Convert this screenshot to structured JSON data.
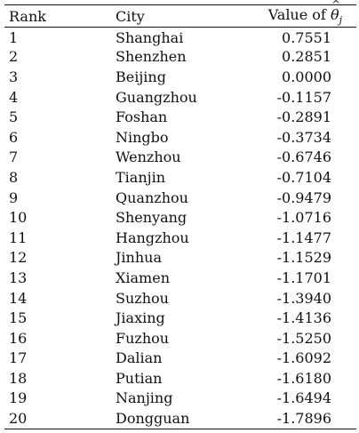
{
  "table": {
    "headers": {
      "rank": "Rank",
      "city": "City",
      "value_prefix": "Value of ",
      "value_symbol": "θ",
      "value_subscript": "j"
    },
    "rows": [
      {
        "rank": "1",
        "city": "Shanghai",
        "value": "0.7551"
      },
      {
        "rank": "2",
        "city": "Shenzhen",
        "value": "0.2851"
      },
      {
        "rank": "3",
        "city": "Beijing",
        "value": "0.0000"
      },
      {
        "rank": "4",
        "city": "Guangzhou",
        "value": "-0.1157"
      },
      {
        "rank": "5",
        "city": "Foshan",
        "value": "-0.2891"
      },
      {
        "rank": "6",
        "city": "Ningbo",
        "value": "-0.3734"
      },
      {
        "rank": "7",
        "city": "Wenzhou",
        "value": "-0.6746"
      },
      {
        "rank": "8",
        "city": "Tianjin",
        "value": "-0.7104"
      },
      {
        "rank": "9",
        "city": "Quanzhou",
        "value": "-0.9479"
      },
      {
        "rank": "10",
        "city": "Shenyang",
        "value": "-1.0716"
      },
      {
        "rank": "11",
        "city": "Hangzhou",
        "value": "-1.1477"
      },
      {
        "rank": "12",
        "city": "Jinhua",
        "value": "-1.1529"
      },
      {
        "rank": "13",
        "city": "Xiamen",
        "value": "-1.1701"
      },
      {
        "rank": "14",
        "city": "Suzhou",
        "value": "-1.3940"
      },
      {
        "rank": "15",
        "city": "Jiaxing",
        "value": "-1.4136"
      },
      {
        "rank": "16",
        "city": "Fuzhou",
        "value": "-1.5250"
      },
      {
        "rank": "17",
        "city": "Dalian",
        "value": "-1.6092"
      },
      {
        "rank": "18",
        "city": "Putian",
        "value": "-1.6180"
      },
      {
        "rank": "19",
        "city": "Nanjing",
        "value": "-1.6494"
      },
      {
        "rank": "20",
        "city": "Dongguan",
        "value": "-1.7896"
      }
    ]
  }
}
